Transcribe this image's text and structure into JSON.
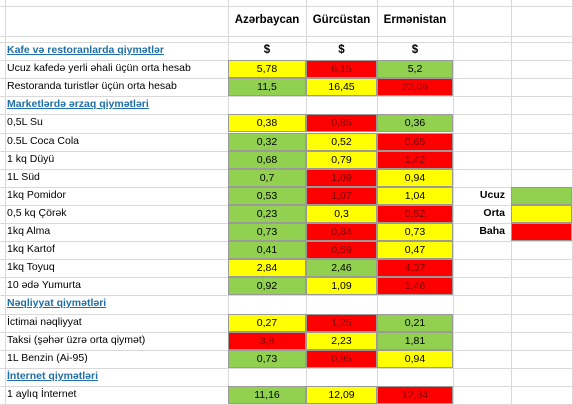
{
  "headers": {
    "az": "Azərbaycan",
    "ge": "Gürcüstan",
    "am": "Ermənistan"
  },
  "legend": [
    {
      "label": "Ucuz",
      "color": "#92d050"
    },
    {
      "label": "Orta",
      "color": "#ffff00"
    },
    {
      "label": "Baha",
      "color": "#ff0000"
    }
  ],
  "colors": {
    "cheap": "#92d050",
    "medium": "#ffff00",
    "expensive": "#ff0000",
    "section_text": "#1f6fa8"
  },
  "rows": [
    {
      "kind": "section",
      "label": "Kafe və restoranlarda qiymətlər",
      "az": "$",
      "ge": "$",
      "am": "$"
    },
    {
      "kind": "item",
      "label": "Ucuz kafedə yerli əhali üçün orta hesab",
      "az": "5,78",
      "ge": "6,15",
      "am": "5,2",
      "c": [
        "y",
        "r",
        "g"
      ]
    },
    {
      "kind": "item",
      "label": "Restoranda turistlər üçün orta hesab",
      "az": "11,5",
      "ge": "16,45",
      "am": "22,06",
      "c": [
        "g",
        "y",
        "r"
      ]
    },
    {
      "kind": "section",
      "label": "Marketlərdə ərzaq qiymətləri"
    },
    {
      "kind": "item",
      "label": "0,5L Su",
      "az": "0,38",
      "ge": "0,85",
      "am": "0,36",
      "c": [
        "y",
        "r",
        "g"
      ]
    },
    {
      "kind": "item",
      "label": "0.5L Coca Cola",
      "az": "0,32",
      "ge": "0,52",
      "am": "0,65",
      "c": [
        "g",
        "y",
        "r"
      ]
    },
    {
      "kind": "item",
      "label": "1 kq Düyü",
      "az": "0,68",
      "ge": "0,79",
      "am": "1,42",
      "c": [
        "g",
        "y",
        "r"
      ]
    },
    {
      "kind": "item",
      "label": "1L Süd",
      "az": "0,7",
      "ge": "1,09",
      "am": "0,94",
      "c": [
        "g",
        "r",
        "y"
      ]
    },
    {
      "kind": "item",
      "label": "1kq Pomidor",
      "az": "0,53",
      "ge": "1,07",
      "am": "1,04",
      "c": [
        "g",
        "r",
        "y"
      ]
    },
    {
      "kind": "item",
      "label": "0,5 kq Çörək",
      "az": "0,23",
      "ge": "0,3",
      "am": "0,52",
      "c": [
        "g",
        "y",
        "r"
      ]
    },
    {
      "kind": "item",
      "label": "1kq Alma",
      "az": "0,73",
      "ge": "0,84",
      "am": "0,73",
      "c": [
        "g",
        "r",
        "y"
      ]
    },
    {
      "kind": "item",
      "label": "1kq Kartof",
      "az": "0,41",
      "ge": "0,59",
      "am": "0,47",
      "c": [
        "g",
        "r",
        "y"
      ]
    },
    {
      "kind": "item",
      "label": "1kq Toyuq",
      "az": "2,84",
      "ge": "2,46",
      "am": "4,37",
      "c": [
        "y",
        "g",
        "r"
      ]
    },
    {
      "kind": "item",
      "label": "10 ədə Yumurta",
      "az": "0,92",
      "ge": "1,09",
      "am": "1,46",
      "c": [
        "g",
        "y",
        "r"
      ]
    },
    {
      "kind": "section",
      "label": "Nəqliyyat qiymətləri"
    },
    {
      "kind": "item",
      "label": "İctimai nəqliyyat",
      "az": "0,27",
      "ge": "1,25",
      "am": "0,21",
      "c": [
        "y",
        "r",
        "g"
      ]
    },
    {
      "kind": "item",
      "label": "Taksi (şəhər üzrə orta qiymət)",
      "az": "3,8",
      "ge": "2,23",
      "am": "1,81",
      "c": [
        "r",
        "y",
        "g"
      ]
    },
    {
      "kind": "item",
      "label": "1L Benzin (Ai-95)",
      "az": "0,73",
      "ge": "0,95",
      "am": "0,94",
      "c": [
        "g",
        "r",
        "y"
      ]
    },
    {
      "kind": "section",
      "label": "İnternet qiymətləri"
    },
    {
      "kind": "item",
      "label": "1 aylıq İnternet",
      "az": "11,16",
      "ge": "12,09",
      "am": "12,34",
      "c": [
        "g",
        "y",
        "r"
      ]
    }
  ]
}
